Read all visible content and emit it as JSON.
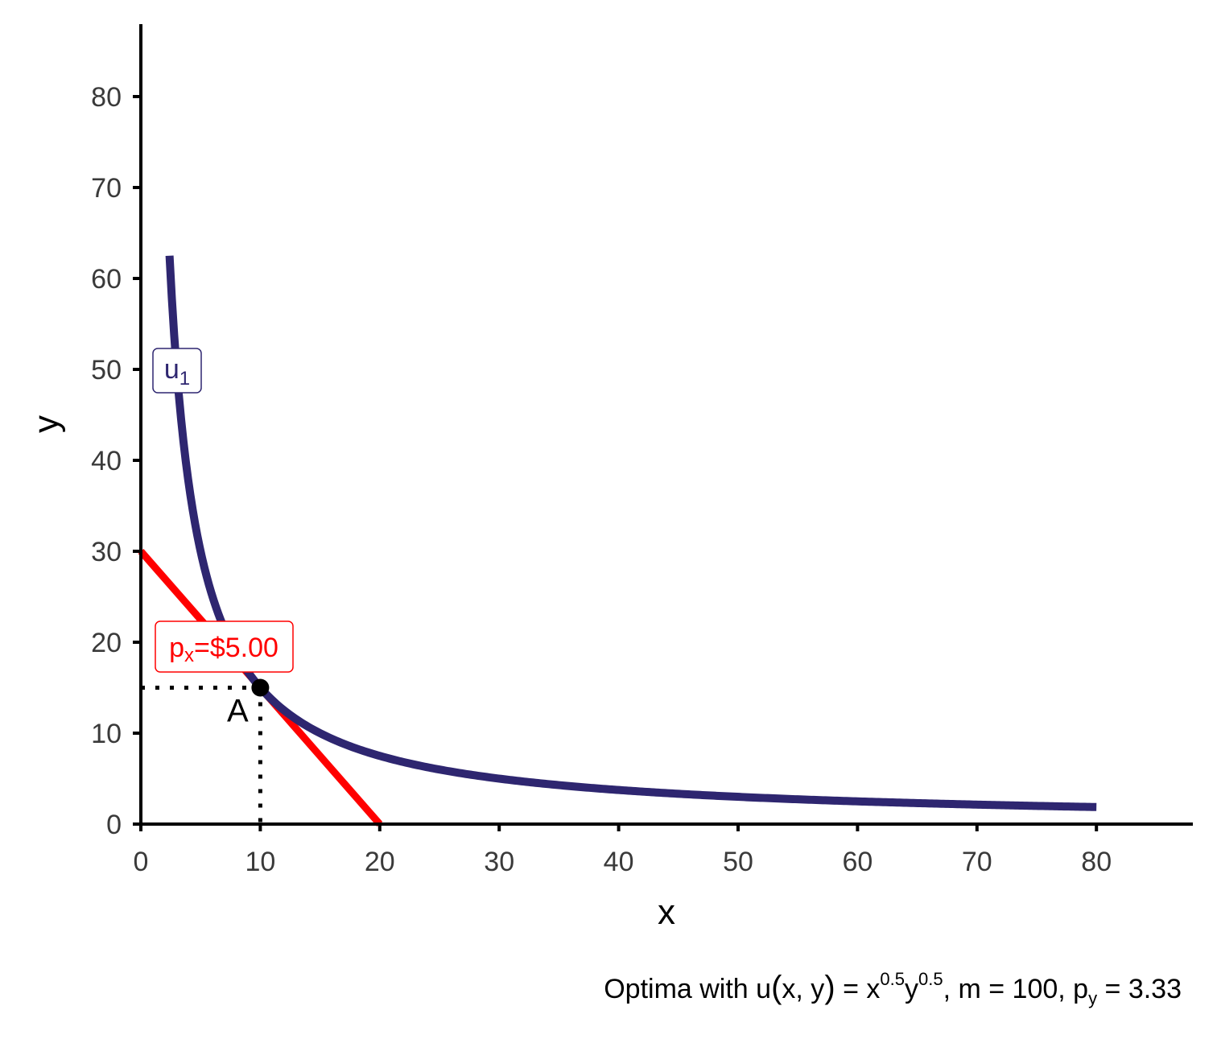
{
  "chart_data": {
    "type": "line",
    "xlabel": "x",
    "ylabel": "y",
    "xlim": [
      0,
      88
    ],
    "ylim": [
      0,
      88
    ],
    "x_ticks": [
      0,
      10,
      20,
      30,
      40,
      50,
      60,
      70,
      80
    ],
    "y_ticks": [
      0,
      10,
      20,
      30,
      40,
      50,
      60,
      70,
      80
    ],
    "grid": false,
    "colors": {
      "indifference": "#2e2670",
      "budget": "#ff0000",
      "point": "#000000",
      "axis": "#000000"
    },
    "series": [
      {
        "name": "u1",
        "label_base": "u",
        "label_sub": "1",
        "kind": "indifference",
        "k": 150,
        "x_range": [
          2.4,
          80
        ],
        "label_at": {
          "x": 3,
          "y": 50
        }
      },
      {
        "name": "budget",
        "label_base": "p",
        "label_sub": "x",
        "label_rest": "=$5.00",
        "kind": "budget",
        "points": [
          {
            "x": 0,
            "y": 30
          },
          {
            "x": 20,
            "y": 0
          }
        ],
        "label_at": {
          "x": 7,
          "y": 19.5
        }
      }
    ],
    "points": [
      {
        "label": "A",
        "x": 10,
        "y": 15
      }
    ],
    "guides": {
      "x": 10,
      "y": 15,
      "style": "dotted"
    },
    "caption": {
      "t1": "Optima with u",
      "t2": "(",
      "t3": "x, y",
      "t4": ")",
      "t5": " = x",
      "sup1": "0.5",
      "t6": "y",
      "sup2": "0.5",
      "t7": ", m = 100, p",
      "sub1": "y",
      "t8": " = 3.33"
    }
  }
}
